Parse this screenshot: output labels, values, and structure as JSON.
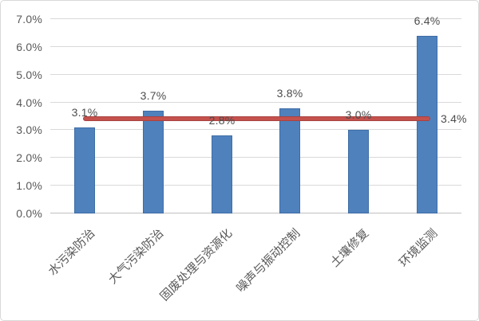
{
  "chart_data": {
    "type": "bar",
    "title": "",
    "xlabel": "",
    "ylabel": "",
    "categories": [
      "水污染防治",
      "大气污染防治",
      "固废处理与资源化",
      "噪声与振动控制",
      "土壤修复",
      "环境监测"
    ],
    "values": [
      3.1,
      3.7,
      2.8,
      3.8,
      3.0,
      6.4
    ],
    "data_labels": [
      "3.1%",
      "3.7%",
      "2.8%",
      "3.8%",
      "3.0%",
      "6.4%"
    ],
    "ylim": [
      0,
      7
    ],
    "ytick_step": 1,
    "ytick_labels": [
      "0.0%",
      "1.0%",
      "2.0%",
      "3.0%",
      "4.0%",
      "5.0%",
      "6.0%",
      "7.0%"
    ],
    "grid": true,
    "legend": "none",
    "reference_line": {
      "value": 3.4,
      "label": "3.4%"
    },
    "colors": {
      "bar_fill": "#4F81BD",
      "bar_border": "#3E6DA5",
      "reference_line": "#C5514D",
      "reference_line_border": "#A84341",
      "gridline": "#D9D9D9",
      "axis_line": "#C0C0C0",
      "tick_text": "#595959",
      "data_label_text": "#4D4D4D",
      "category_text": "#595959"
    }
  }
}
